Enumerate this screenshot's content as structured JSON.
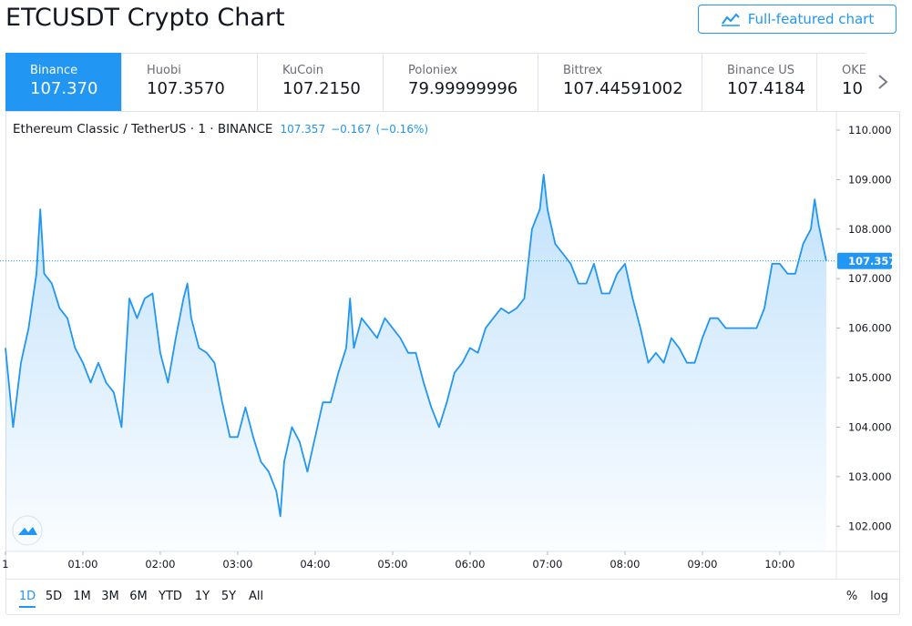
{
  "header": {
    "title": "ETCUSDT Crypto Chart",
    "button": "Full-featured chart"
  },
  "exchanges": [
    {
      "name": "Binance",
      "price": "107.370"
    },
    {
      "name": "Huobi",
      "price": "107.3570"
    },
    {
      "name": "KuCoin",
      "price": "107.2150"
    },
    {
      "name": "Poloniex",
      "price": "79.99999996"
    },
    {
      "name": "Bittrex",
      "price": "107.44591002"
    },
    {
      "name": "Binance US",
      "price": "107.4184"
    },
    {
      "name": "OKE",
      "price": "10"
    }
  ],
  "chart_data": {
    "type": "line",
    "legend": {
      "symbol": "Ethereum Classic / TetherUS · 1 · BINANCE",
      "change": "−0.167",
      "change_percent": "(−0.16%)"
    },
    "last_value": 107.357,
    "series": [
      {
        "color": "#2196f3",
        "x": [
          0.0,
          0.1,
          0.2,
          0.3,
          0.4,
          0.45,
          0.5,
          0.6,
          0.7,
          0.8,
          0.9,
          1.0,
          1.1,
          1.2,
          1.3,
          1.4,
          1.5,
          1.6,
          1.7,
          1.8,
          1.9,
          2.0,
          2.1,
          2.2,
          2.3,
          2.35,
          2.4,
          2.5,
          2.6,
          2.7,
          2.8,
          2.9,
          3.0,
          3.1,
          3.2,
          3.3,
          3.4,
          3.5,
          3.55,
          3.6,
          3.7,
          3.8,
          3.9,
          4.0,
          4.1,
          4.2,
          4.3,
          4.4,
          4.45,
          4.5,
          4.6,
          4.7,
          4.8,
          4.9,
          5.0,
          5.1,
          5.2,
          5.3,
          5.4,
          5.5,
          5.6,
          5.7,
          5.8,
          5.9,
          6.0,
          6.1,
          6.2,
          6.3,
          6.4,
          6.5,
          6.6,
          6.7,
          6.8,
          6.9,
          6.95,
          7.0,
          7.1,
          7.2,
          7.3,
          7.4,
          7.5,
          7.6,
          7.7,
          7.8,
          7.9,
          8.0,
          8.1,
          8.2,
          8.3,
          8.4,
          8.5,
          8.6,
          8.7,
          8.8,
          8.9,
          9.0,
          9.1,
          9.2,
          9.3,
          9.4,
          9.5,
          9.6,
          9.7,
          9.8,
          9.9,
          10.0,
          10.1,
          10.2,
          10.3,
          10.4,
          10.45,
          10.5,
          10.6
        ],
        "values": [
          105.6,
          104.0,
          105.3,
          106.0,
          107.1,
          108.4,
          107.1,
          106.9,
          106.4,
          106.2,
          105.6,
          105.3,
          104.9,
          105.3,
          104.9,
          104.7,
          104.0,
          106.6,
          106.2,
          106.6,
          106.7,
          105.5,
          104.9,
          105.8,
          106.6,
          106.9,
          106.2,
          105.6,
          105.5,
          105.3,
          104.5,
          103.8,
          103.8,
          104.4,
          103.8,
          103.3,
          103.1,
          102.7,
          102.2,
          103.3,
          104.0,
          103.7,
          103.1,
          103.8,
          104.5,
          104.5,
          105.1,
          105.6,
          106.6,
          105.6,
          106.2,
          106.0,
          105.8,
          106.2,
          106.0,
          105.8,
          105.5,
          105.5,
          104.9,
          104.4,
          104.0,
          104.5,
          105.1,
          105.3,
          105.6,
          105.5,
          106.0,
          106.2,
          106.4,
          106.3,
          106.4,
          106.6,
          108.0,
          108.4,
          109.1,
          108.4,
          107.7,
          107.5,
          107.3,
          106.9,
          106.9,
          107.3,
          106.7,
          106.7,
          107.1,
          107.3,
          106.6,
          106.0,
          105.3,
          105.5,
          105.3,
          105.8,
          105.6,
          105.3,
          105.3,
          105.8,
          106.2,
          106.2,
          106.0,
          106.0,
          106.0,
          106.0,
          106.0,
          106.4,
          107.3,
          107.3,
          107.1,
          107.1,
          107.7,
          108.0,
          108.6,
          108.1,
          107.357
        ]
      }
    ],
    "xlim": [
      -0.07,
      10.73
    ],
    "xticks": [
      {
        "value": 0,
        "label": "1"
      },
      {
        "value": 1,
        "label": "01:00"
      },
      {
        "value": 2,
        "label": "02:00"
      },
      {
        "value": 3,
        "label": "03:00"
      },
      {
        "value": 4,
        "label": "04:00"
      },
      {
        "value": 5,
        "label": "05:00"
      },
      {
        "value": 6,
        "label": "06:00"
      },
      {
        "value": 7,
        "label": "07:00"
      },
      {
        "value": 8,
        "label": "08:00"
      },
      {
        "value": 9,
        "label": "09:00"
      },
      {
        "value": 10,
        "label": "10:00"
      }
    ],
    "ylim": [
      101.49,
      110.33
    ],
    "yticks": [
      {
        "value": 102,
        "label": "102.000"
      },
      {
        "value": 103,
        "label": "103.000"
      },
      {
        "value": 104,
        "label": "104.000"
      },
      {
        "value": 105,
        "label": "105.000"
      },
      {
        "value": 106,
        "label": "106.000"
      },
      {
        "value": 107,
        "label": "107.000"
      },
      {
        "value": 108,
        "label": "108.000"
      },
      {
        "value": 109,
        "label": "109.000"
      },
      {
        "value": 110,
        "label": "110.000"
      }
    ],
    "grid": false
  },
  "ranges": [
    "1D",
    "5D",
    "1M",
    "3M",
    "6M",
    "YTD",
    "1Y",
    "5Y",
    "All"
  ],
  "scale_options": [
    "%",
    "log"
  ]
}
